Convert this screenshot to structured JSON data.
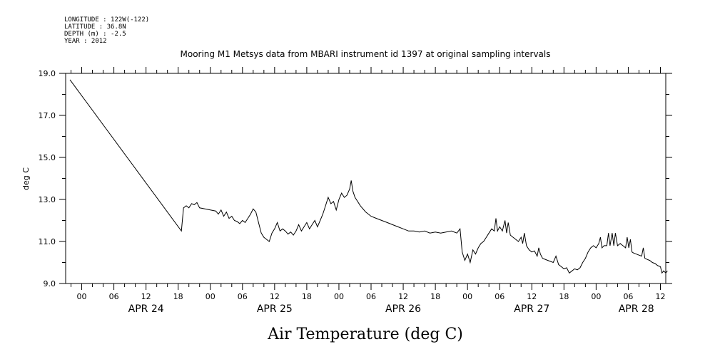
{
  "header": {
    "longitude": "LONGITUDE : 122W(-122)",
    "latitude": "LATITUDE : 36.8N",
    "depth": "DEPTH (m) : -2.5",
    "year": "YEAR : 2012"
  },
  "chart_data": {
    "type": "line",
    "title": "Mooring M1 Metsys data from MBARI instrument id 1397 at original sampling intervals",
    "xlabel": "Air Temperature (deg C)",
    "ylabel": "deg C",
    "xlim": [
      -3,
      109
    ],
    "ylim": [
      9.0,
      19.0
    ],
    "x_units": "hours since 2012-04-24 00:00",
    "yticks": [
      {
        "value": 9.0,
        "label": "9.0"
      },
      {
        "value": 11.0,
        "label": "11.0"
      },
      {
        "value": 13.0,
        "label": "13.0"
      },
      {
        "value": 15.0,
        "label": "15.0"
      },
      {
        "value": 17.0,
        "label": "17.0"
      },
      {
        "value": 19.0,
        "label": "19.0"
      }
    ],
    "xticks": [
      {
        "value": 0,
        "label": "00"
      },
      {
        "value": 6,
        "label": "06"
      },
      {
        "value": 12,
        "label": "12"
      },
      {
        "value": 18,
        "label": "18"
      },
      {
        "value": 24,
        "label": "00"
      },
      {
        "value": 30,
        "label": "06"
      },
      {
        "value": 36,
        "label": "12"
      },
      {
        "value": 42,
        "label": "18"
      },
      {
        "value": 48,
        "label": "00"
      },
      {
        "value": 54,
        "label": "06"
      },
      {
        "value": 60,
        "label": "12"
      },
      {
        "value": 66,
        "label": "18"
      },
      {
        "value": 72,
        "label": "00"
      },
      {
        "value": 78,
        "label": "06"
      },
      {
        "value": 84,
        "label": "12"
      },
      {
        "value": 90,
        "label": "18"
      },
      {
        "value": 96,
        "label": "00"
      },
      {
        "value": 102,
        "label": "06"
      },
      {
        "value": 108,
        "label": "12"
      }
    ],
    "days": [
      {
        "value": 12,
        "label": "APR 24"
      },
      {
        "value": 36,
        "label": "APR 25"
      },
      {
        "value": 60,
        "label": "APR 26"
      },
      {
        "value": 84,
        "label": "APR 27"
      },
      {
        "value": 103.5,
        "label": "APR 28"
      }
    ],
    "grid": false,
    "series": [
      {
        "name": "",
        "points": [
          [
            -2.2,
            18.7
          ],
          [
            18.6,
            11.5
          ],
          [
            19.0,
            12.6
          ],
          [
            19.5,
            12.7
          ],
          [
            20.0,
            12.6
          ],
          [
            20.5,
            12.8
          ],
          [
            21.0,
            12.75
          ],
          [
            21.5,
            12.85
          ],
          [
            22.0,
            12.6
          ],
          [
            23.0,
            12.55
          ],
          [
            24.0,
            12.5
          ],
          [
            25.0,
            12.45
          ],
          [
            25.5,
            12.3
          ],
          [
            26.0,
            12.5
          ],
          [
            26.5,
            12.2
          ],
          [
            27.0,
            12.4
          ],
          [
            27.5,
            12.1
          ],
          [
            28.0,
            12.2
          ],
          [
            28.5,
            12.0
          ],
          [
            29.0,
            11.95
          ],
          [
            29.5,
            11.85
          ],
          [
            30.0,
            12.0
          ],
          [
            30.5,
            11.9
          ],
          [
            31.0,
            12.1
          ],
          [
            31.5,
            12.3
          ],
          [
            32.0,
            12.55
          ],
          [
            32.5,
            12.4
          ],
          [
            33.0,
            11.9
          ],
          [
            33.5,
            11.4
          ],
          [
            34.0,
            11.2
          ],
          [
            34.5,
            11.1
          ],
          [
            35.0,
            11.0
          ],
          [
            35.5,
            11.4
          ],
          [
            36.0,
            11.6
          ],
          [
            36.5,
            11.9
          ],
          [
            37.0,
            11.5
          ],
          [
            37.5,
            11.6
          ],
          [
            38.0,
            11.5
          ],
          [
            38.5,
            11.35
          ],
          [
            39.0,
            11.45
          ],
          [
            39.5,
            11.3
          ],
          [
            40.0,
            11.5
          ],
          [
            40.5,
            11.8
          ],
          [
            41.0,
            11.5
          ],
          [
            41.5,
            11.7
          ],
          [
            42.0,
            11.9
          ],
          [
            42.5,
            11.6
          ],
          [
            43.0,
            11.8
          ],
          [
            43.5,
            12.0
          ],
          [
            44.0,
            11.7
          ],
          [
            44.5,
            12.0
          ],
          [
            45.0,
            12.3
          ],
          [
            45.5,
            12.7
          ],
          [
            46.0,
            13.1
          ],
          [
            46.5,
            12.8
          ],
          [
            47.0,
            12.9
          ],
          [
            47.5,
            12.5
          ],
          [
            48.0,
            13.0
          ],
          [
            48.5,
            13.3
          ],
          [
            49.0,
            13.1
          ],
          [
            49.5,
            13.2
          ],
          [
            50.0,
            13.5
          ],
          [
            50.3,
            13.9
          ],
          [
            50.6,
            13.4
          ],
          [
            51.0,
            13.1
          ],
          [
            51.5,
            12.9
          ],
          [
            52.0,
            12.7
          ],
          [
            53.0,
            12.4
          ],
          [
            54.0,
            12.2
          ],
          [
            55.0,
            12.1
          ],
          [
            56.0,
            12.0
          ],
          [
            57.0,
            11.9
          ],
          [
            58.0,
            11.8
          ],
          [
            59.0,
            11.7
          ],
          [
            60.0,
            11.6
          ],
          [
            61.0,
            11.5
          ],
          [
            62.0,
            11.5
          ],
          [
            63.0,
            11.45
          ],
          [
            64.0,
            11.5
          ],
          [
            65.0,
            11.4
          ],
          [
            66.0,
            11.45
          ],
          [
            67.0,
            11.4
          ],
          [
            68.0,
            11.45
          ],
          [
            69.0,
            11.5
          ],
          [
            70.0,
            11.4
          ],
          [
            70.6,
            11.6
          ],
          [
            71.0,
            10.5
          ],
          [
            71.5,
            10.1
          ],
          [
            72.0,
            10.4
          ],
          [
            72.5,
            10.0
          ],
          [
            73.0,
            10.6
          ],
          [
            73.5,
            10.4
          ],
          [
            74.0,
            10.7
          ],
          [
            74.5,
            10.9
          ],
          [
            75.0,
            11.0
          ],
          [
            75.5,
            11.2
          ],
          [
            76.0,
            11.4
          ],
          [
            76.5,
            11.6
          ],
          [
            77.0,
            11.5
          ],
          [
            77.3,
            12.1
          ],
          [
            77.6,
            11.5
          ],
          [
            78.0,
            11.7
          ],
          [
            78.5,
            11.5
          ],
          [
            79.0,
            12.0
          ],
          [
            79.3,
            11.4
          ],
          [
            79.6,
            11.9
          ],
          [
            80.0,
            11.3
          ],
          [
            80.5,
            11.2
          ],
          [
            81.0,
            11.1
          ],
          [
            81.5,
            11.0
          ],
          [
            82.0,
            11.2
          ],
          [
            82.3,
            10.9
          ],
          [
            82.6,
            11.4
          ],
          [
            83.0,
            10.8
          ],
          [
            83.5,
            10.6
          ],
          [
            84.0,
            10.5
          ],
          [
            84.5,
            10.55
          ],
          [
            85.0,
            10.3
          ],
          [
            85.3,
            10.7
          ],
          [
            85.6,
            10.4
          ],
          [
            86.0,
            10.2
          ],
          [
            86.5,
            10.15
          ],
          [
            87.0,
            10.1
          ],
          [
            88.0,
            10.0
          ],
          [
            88.5,
            10.3
          ],
          [
            89.0,
            9.9
          ],
          [
            89.5,
            9.8
          ],
          [
            90.0,
            9.7
          ],
          [
            90.5,
            9.75
          ],
          [
            91.0,
            9.5
          ],
          [
            91.5,
            9.6
          ],
          [
            92.0,
            9.7
          ],
          [
            92.5,
            9.65
          ],
          [
            93.0,
            9.75
          ],
          [
            93.5,
            10.0
          ],
          [
            94.0,
            10.2
          ],
          [
            94.5,
            10.5
          ],
          [
            95.0,
            10.7
          ],
          [
            95.5,
            10.8
          ],
          [
            96.0,
            10.7
          ],
          [
            96.5,
            10.9
          ],
          [
            96.8,
            11.2
          ],
          [
            97.1,
            10.7
          ],
          [
            97.5,
            10.8
          ],
          [
            98.0,
            10.8
          ],
          [
            98.3,
            11.4
          ],
          [
            98.6,
            10.8
          ],
          [
            99.0,
            11.4
          ],
          [
            99.3,
            10.8
          ],
          [
            99.6,
            11.4
          ],
          [
            100.0,
            10.8
          ],
          [
            100.5,
            10.9
          ],
          [
            101.0,
            10.8
          ],
          [
            101.5,
            10.7
          ],
          [
            101.8,
            11.2
          ],
          [
            102.1,
            10.7
          ],
          [
            102.4,
            11.1
          ],
          [
            102.7,
            10.5
          ],
          [
            103.0,
            10.45
          ],
          [
            103.5,
            10.4
          ],
          [
            104.0,
            10.35
          ],
          [
            104.5,
            10.3
          ],
          [
            104.8,
            10.7
          ],
          [
            105.1,
            10.2
          ],
          [
            105.5,
            10.15
          ],
          [
            106.0,
            10.1
          ],
          [
            106.5,
            10.0
          ],
          [
            107.0,
            9.95
          ],
          [
            107.5,
            9.85
          ],
          [
            108.0,
            9.8
          ],
          [
            108.3,
            9.5
          ],
          [
            108.6,
            9.6
          ],
          [
            109.0,
            9.5
          ],
          [
            109.3,
            9.6
          ]
        ]
      }
    ]
  }
}
